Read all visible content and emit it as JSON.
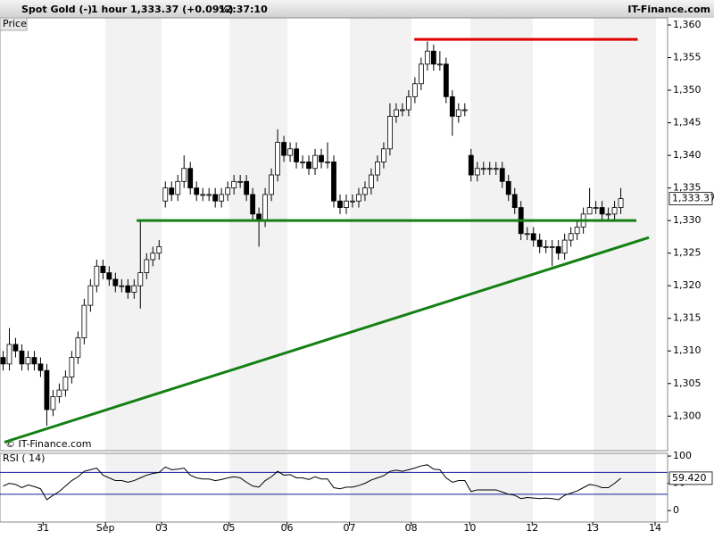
{
  "header": {
    "instrument": "Spot Gold (-)",
    "interval": "1 hour",
    "price": "1,333.37 (+0.09%)",
    "time": "12:37:10",
    "brand": "IT-Finance.com"
  },
  "chart_data": [
    {
      "type": "candlestick",
      "panel_label": "Price",
      "watermark": "© IT-Finance.com",
      "open": [
        1309,
        1308,
        1311,
        1310,
        1308,
        1309,
        1308,
        1307,
        1301,
        1303,
        1304,
        1306,
        1309,
        1312,
        1317,
        1320,
        1323,
        1322,
        1321,
        1320,
        1320,
        1319,
        1320,
        1322,
        1324,
        1325,
        1333,
        1335,
        1334,
        1336,
        1338,
        1335,
        1334,
        1334,
        1334,
        1333,
        1334,
        1335,
        1336,
        1336,
        1334,
        1331,
        1330,
        1334,
        1337,
        1342,
        1340,
        1341,
        1339,
        1339,
        1338,
        1340,
        1339,
        1339,
        1333,
        1332,
        1333,
        1333,
        1334,
        1335,
        1337,
        1339,
        1341,
        1346,
        1347,
        1347,
        1349,
        1351,
        1354,
        1356,
        1354,
        1354,
        1349,
        1346,
        1347,
        1340,
        1337,
        1338,
        1338,
        1338,
        1338,
        1336,
        1334,
        1332,
        1328,
        1328,
        1327,
        1326,
        1326,
        1326,
        1325,
        1327,
        1328,
        1329,
        1331,
        1332,
        1332,
        1331,
        1331,
        1332
      ],
      "high": [
        1310,
        1313.5,
        1312,
        1311,
        1310,
        1310,
        1309,
        1308,
        1304,
        1305,
        1307,
        1310,
        1313,
        1318,
        1321,
        1324,
        1324,
        1323,
        1322,
        1321,
        1321,
        1321,
        1330,
        1325,
        1326,
        1327,
        1336,
        1336,
        1337,
        1340,
        1339,
        1336,
        1335,
        1335,
        1335,
        1335,
        1336,
        1337,
        1337,
        1337,
        1335,
        1332,
        1335,
        1338,
        1344,
        1343,
        1342,
        1342,
        1340,
        1340,
        1341,
        1341,
        1342,
        1340,
        1334,
        1334,
        1334,
        1335,
        1336,
        1338,
        1340,
        1342,
        1348,
        1348,
        1348,
        1350,
        1352,
        1355,
        1357.5,
        1357,
        1356,
        1355,
        1350,
        1348,
        1348,
        1341,
        1339,
        1339,
        1339,
        1339,
        1339,
        1337,
        1335,
        1333,
        1329,
        1329,
        1328,
        1327,
        1327,
        1327,
        1328,
        1329,
        1330,
        1332,
        1335,
        1333,
        1333,
        1332,
        1333,
        1335
      ],
      "low": [
        1307,
        1307,
        1309,
        1307,
        1307,
        1307,
        1306,
        1298.5,
        1300,
        1302,
        1303,
        1305,
        1308,
        1311,
        1316,
        1319,
        1321,
        1320,
        1319,
        1319,
        1318,
        1318,
        1316.5,
        1321,
        1323,
        1324,
        1332,
        1333,
        1333,
        1335,
        1334,
        1333,
        1333,
        1333,
        1332,
        1332,
        1333,
        1334,
        1335,
        1333,
        1330,
        1326,
        1329,
        1333,
        1336,
        1339,
        1339,
        1338,
        1338,
        1337,
        1337,
        1338,
        1338,
        1332,
        1331,
        1331,
        1332,
        1332,
        1333,
        1334,
        1336,
        1338,
        1340,
        1345,
        1346,
        1346,
        1348,
        1350,
        1353,
        1353,
        1353,
        1348,
        1343,
        1345,
        1346,
        1336,
        1336,
        1337,
        1337,
        1337,
        1335,
        1333,
        1331,
        1327,
        1327,
        1326,
        1325,
        1325,
        1323,
        1324,
        1324,
        1326,
        1327,
        1328,
        1331,
        1331,
        1330,
        1330,
        1330,
        1331
      ],
      "close": [
        1308,
        1311,
        1310,
        1308,
        1309,
        1308,
        1307,
        1301,
        1303,
        1304,
        1306,
        1309,
        1312,
        1317,
        1320,
        1323,
        1322,
        1321,
        1320,
        1320,
        1319,
        1320,
        1322,
        1324,
        1325,
        1326,
        1335,
        1334,
        1336,
        1338,
        1335,
        1334,
        1334,
        1334,
        1333,
        1334,
        1335,
        1336,
        1336,
        1334,
        1331,
        1330,
        1334,
        1337,
        1342,
        1340,
        1341,
        1339,
        1339,
        1338,
        1340,
        1339,
        1339,
        1333,
        1332,
        1333,
        1333,
        1334,
        1335,
        1337,
        1339,
        1341,
        1346,
        1347,
        1347,
        1349,
        1351,
        1354,
        1356,
        1354,
        1354,
        1349,
        1346,
        1347,
        1347,
        1337,
        1338,
        1338,
        1338,
        1338,
        1336,
        1334,
        1332,
        1328,
        1328,
        1327,
        1326,
        1326,
        1326,
        1325,
        1327,
        1328,
        1329,
        1331,
        1332,
        1332,
        1331,
        1331,
        1332,
        1333.37
      ],
      "last_label": "1,333.37",
      "trend_lines": [
        {
          "color": "#e00000",
          "x": [
            65.9,
            101.7
          ],
          "values": [
            1357.8,
            1357.8
          ]
        },
        {
          "color": "#138013",
          "x": [
            21.4,
            101.5
          ],
          "values": [
            1330,
            1330
          ]
        },
        {
          "color": "#138013",
          "x": [
            0.2,
            103.5
          ],
          "values": [
            1296,
            1327.4
          ]
        }
      ],
      "xlim": [
        -0.5,
        106.5
      ],
      "ylim": [
        1294.7,
        1361.1
      ],
      "yticks": [
        {
          "value": 1300,
          "label": "1,300"
        },
        {
          "value": 1305,
          "label": "1,305"
        },
        {
          "value": 1310,
          "label": "1,310"
        },
        {
          "value": 1315,
          "label": "1,315"
        },
        {
          "value": 1320,
          "label": "1,320"
        },
        {
          "value": 1325,
          "label": "1,325"
        },
        {
          "value": 1330,
          "label": "1,330"
        },
        {
          "value": 1335,
          "label": "1,335"
        },
        {
          "value": 1340,
          "label": "1,340"
        },
        {
          "value": 1345,
          "label": "1,345"
        },
        {
          "value": 1350,
          "label": "1,350"
        },
        {
          "value": 1355,
          "label": "1,355"
        },
        {
          "value": 1360,
          "label": "1,360"
        }
      ]
    },
    {
      "type": "line",
      "panel_label": "RSI ( 14)",
      "color": "#000000",
      "values": [
        45,
        50,
        48,
        42,
        47,
        44,
        40,
        20,
        28,
        35,
        45,
        55,
        62,
        72,
        75,
        78,
        65,
        60,
        55,
        55,
        52,
        55,
        60,
        65,
        68,
        70,
        80,
        75,
        76,
        78,
        65,
        60,
        58,
        58,
        55,
        57,
        60,
        62,
        60,
        52,
        45,
        43,
        55,
        62,
        72,
        65,
        66,
        60,
        60,
        57,
        62,
        58,
        58,
        42,
        40,
        43,
        43,
        46,
        50,
        56,
        60,
        64,
        72,
        74,
        72,
        75,
        78,
        82,
        84,
        76,
        75,
        60,
        52,
        55,
        55,
        35,
        38,
        38,
        38,
        38,
        34,
        30,
        28,
        22,
        24,
        23,
        22,
        23,
        22,
        20,
        28,
        32,
        36,
        42,
        48,
        46,
        42,
        42,
        50,
        59.42
      ],
      "last_label": "59.420",
      "levels": [
        70,
        30
      ],
      "level_color": "#1a1aa0",
      "xlim": [
        -0.5,
        106.5
      ],
      "ylim": [
        -21,
        105
      ],
      "yticks": [
        0,
        50,
        100
      ],
      "xticks": [
        {
          "value": 6.4,
          "label": "31"
        },
        {
          "value": 16.4,
          "label": "Sep"
        },
        {
          "value": 25.4,
          "label": "03"
        },
        {
          "value": 36.2,
          "label": "05"
        },
        {
          "value": 45.5,
          "label": "06"
        },
        {
          "value": 55.5,
          "label": "07"
        },
        {
          "value": 65.4,
          "label": "08"
        },
        {
          "value": 74.8,
          "label": "10"
        },
        {
          "value": 84.8,
          "label": "12"
        },
        {
          "value": 94.5,
          "label": "13"
        },
        {
          "value": 104.5,
          "label": "14"
        }
      ]
    }
  ]
}
